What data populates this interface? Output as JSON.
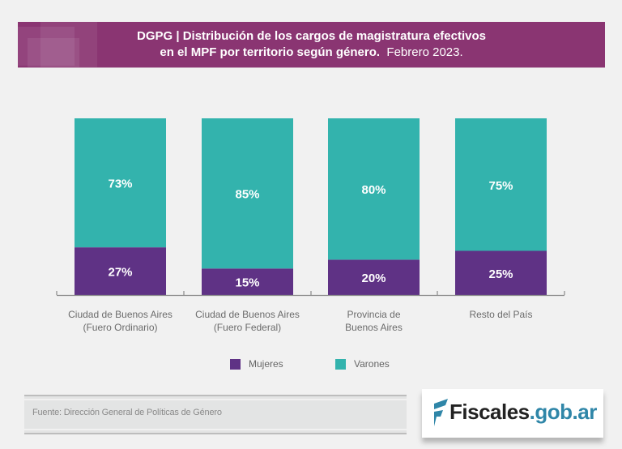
{
  "header": {
    "title_bold_line1": "DGPG | Distribución de los cargos de magistratura efectivos",
    "title_bold_line2": "en el MPF por territorio según género.",
    "title_light": "Febrero 2023."
  },
  "colors": {
    "banner": "#8a3572",
    "mujeres": "#5f3285",
    "varones": "#33b3ad",
    "logo_blue": "#2f86a8"
  },
  "chart_data": {
    "type": "bar",
    "stacked": true,
    "percent": true,
    "title": "DGPG | Distribución de los cargos de magistratura efectivos en el MPF por territorio según género. Febrero 2023.",
    "xlabel": "",
    "ylabel": "",
    "ylim": [
      0,
      100
    ],
    "grid": false,
    "legend_position": "bottom",
    "categories": [
      [
        "Ciudad de Buenos Aires",
        "(Fuero Ordinario)"
      ],
      [
        "Ciudad de Buenos Aires",
        "(Fuero Federal)"
      ],
      [
        "Provincia de",
        "Buenos Aires"
      ],
      [
        "Resto del País"
      ]
    ],
    "series": [
      {
        "name": "Mujeres",
        "values": [
          27,
          15,
          20,
          25
        ],
        "labels": [
          "27%",
          "15%",
          "20%",
          "25%"
        ]
      },
      {
        "name": "Varones",
        "values": [
          73,
          85,
          80,
          75
        ],
        "labels": [
          "73%",
          "85%",
          "80%",
          "75%"
        ]
      }
    ]
  },
  "legend": [
    {
      "label": "Mujeres"
    },
    {
      "label": "Varones"
    }
  ],
  "footer": {
    "source": "Fuente: Dirección General de Políticas de Género",
    "logo_dark": "Fiscales",
    "logo_blue": ".gob.ar"
  }
}
